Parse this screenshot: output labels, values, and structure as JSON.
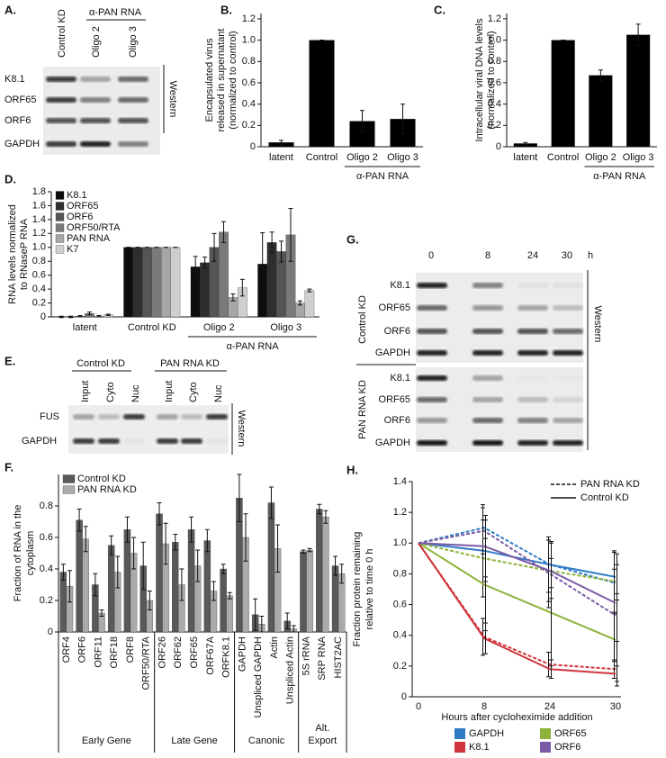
{
  "blots": [
    {
      "panel": "A.",
      "columns": [
        "Control KD",
        "Oligo 2",
        "Oligo 3"
      ],
      "column_group": "α-PAN RNA",
      "rows": [
        "K8.1",
        "ORF65",
        "ORF6",
        "GAPDH"
      ],
      "side_label": "Western"
    },
    {
      "panel": "E.",
      "column_groups": [
        {
          "label": "Control KD",
          "columns": [
            "Input",
            "Cyto",
            "Nuc"
          ]
        },
        {
          "label": "PAN RNA KD",
          "columns": [
            "Input",
            "Cyto",
            "Nuc"
          ]
        }
      ],
      "rows": [
        "FUS",
        "GAPDH"
      ],
      "side_label": "Western"
    },
    {
      "panel": "G.",
      "columns": [
        "0",
        "8",
        "24",
        "30"
      ],
      "unit": "h",
      "row_groups": [
        {
          "label": "Control KD",
          "rows": [
            "K8.1",
            "ORF65",
            "ORF6",
            "GAPDH"
          ]
        },
        {
          "label": "PAN RNA KD",
          "rows": [
            "K8.1",
            "ORF65",
            "ORF6",
            "GAPDH"
          ]
        }
      ],
      "side_label": "Western"
    }
  ],
  "chart_data": [
    {
      "type": "bar",
      "panel": "B.",
      "ylabel": [
        "Encapsulated virus",
        "released in supernatant",
        "(normalized to control)"
      ],
      "groups": [
        {
          "categories": [
            "latent",
            "Control"
          ]
        },
        {
          "label": "α-PAN RNA",
          "categories": [
            "Oligo 2",
            "Oligo 3"
          ]
        }
      ],
      "values": [
        0.04,
        1.0,
        0.24,
        0.26
      ],
      "errors": [
        0.02,
        0,
        0.1,
        0.14
      ],
      "color": "#000000",
      "ylim": [
        0,
        1.25
      ],
      "yticks": [
        0,
        0.2,
        0.4,
        0.6,
        0.8,
        {
          "value": 1,
          "label": "1.0"
        },
        1.2
      ],
      "group_style": "bracket",
      "category_labels": "horizontal"
    },
    {
      "type": "bar",
      "panel": "C.",
      "ylabel": [
        "Intracellular viral DNA levels",
        "(normalized to control)"
      ],
      "groups": [
        {
          "categories": [
            "latent",
            "Control"
          ]
        },
        {
          "label": "α-PAN RNA",
          "categories": [
            "Oligo 2",
            "Oligo 3"
          ]
        }
      ],
      "values": [
        0.03,
        1.0,
        0.67,
        1.05
      ],
      "errors": [
        0.01,
        0,
        0.05,
        0.1
      ],
      "color": "#000000",
      "ylim": [
        0,
        1.25
      ],
      "yticks": [
        0,
        0.2,
        0.4,
        0.6,
        0.8,
        {
          "value": 1,
          "label": "1.0"
        },
        1.2
      ],
      "group_style": "bracket",
      "category_labels": "horizontal"
    },
    {
      "type": "bar",
      "panel": "D.",
      "ylabel": [
        "RNA levels normalized",
        "to RNaseP RNA"
      ],
      "groups": [
        {
          "categories": [
            "latent"
          ]
        },
        {
          "categories": [
            "Control KD"
          ]
        },
        {
          "label": "α-PAN RNA",
          "categories": [
            "Oligo 2",
            "Oligo 3"
          ]
        }
      ],
      "series": [
        {
          "name": "K8.1",
          "color": "#0d0d0d",
          "values": [
            0,
            1.0,
            0.72,
            0.76
          ],
          "errors": [
            0.01,
            0,
            0.15,
            0.45
          ]
        },
        {
          "name": "ORF65",
          "color": "#2e2e2e",
          "values": [
            0,
            1.0,
            0.78,
            1.07
          ],
          "errors": [
            0.01,
            0,
            0.08,
            0.15
          ]
        },
        {
          "name": "ORF6",
          "color": "#555555",
          "values": [
            0.01,
            1.0,
            1.0,
            0.94
          ],
          "errors": [
            0.01,
            0,
            0.2,
            0.15
          ]
        },
        {
          "name": "ORF50/RTA",
          "color": "#7a7a7a",
          "values": [
            0.05,
            1.0,
            1.22,
            1.18
          ],
          "errors": [
            0.02,
            0,
            0.15,
            0.38
          ]
        },
        {
          "name": "PAN RNA",
          "color": "#a6a6a6",
          "values": [
            0.01,
            1.0,
            0.28,
            0.2
          ],
          "errors": [
            0.01,
            0,
            0.05,
            0.03
          ]
        },
        {
          "name": "K7",
          "color": "#cfcfcf",
          "values": [
            0.03,
            1.0,
            0.42,
            0.38
          ],
          "errors": [
            0.01,
            0,
            0.12,
            0.02
          ]
        }
      ],
      "ylim": [
        0,
        1.8
      ],
      "yticks": [
        0,
        0.2,
        0.4,
        0.6,
        0.8,
        {
          "value": 1,
          "label": "1.0"
        },
        1.2,
        1.4,
        1.6,
        1.8
      ],
      "group_style": "bracket",
      "category_labels": "horizontal"
    },
    {
      "type": "bar",
      "panel": "F.",
      "ylabel": [
        "Fraction of RNA in the",
        "cytoplasm"
      ],
      "groups": [
        {
          "label": "Early Gene",
          "categories": [
            "ORF4",
            "ORF6",
            "ORF11",
            "ORF18",
            "ORF8",
            "ORF50/RTA"
          ]
        },
        {
          "label": "Late Gene",
          "categories": [
            "ORF26",
            "ORF62",
            "ORF65",
            "ORF67A",
            "ORFK8.1"
          ]
        },
        {
          "label": "Canonic",
          "categories": [
            "GAPDH",
            "Unspliced GAPDH",
            "Actin",
            "Unspliced Actin"
          ]
        },
        {
          "label": [
            "Alt.",
            "Export"
          ],
          "categories": [
            "5S rRNA",
            "SRP RNA",
            "HIST2AC"
          ]
        }
      ],
      "series": [
        {
          "name": "Control KD",
          "color": "#595959",
          "values": [
            0.38,
            0.71,
            0.3,
            0.55,
            0.65,
            0.42,
            0.75,
            0.57,
            0.65,
            0.58,
            0.4,
            0.85,
            0.11,
            0.82,
            0.07,
            0.51,
            0.78,
            0.42
          ],
          "errors": [
            0.05,
            0.07,
            0.07,
            0.06,
            0.08,
            0.15,
            0.07,
            0.05,
            0.08,
            0.07,
            0.03,
            0.15,
            0.1,
            0.1,
            0.05,
            0.01,
            0.03,
            0.06
          ]
        },
        {
          "name": "PAN RNA KD",
          "color": "#ababab",
          "values": [
            0.29,
            0.59,
            0.12,
            0.38,
            0.5,
            0.2,
            0.56,
            0.3,
            0.42,
            0.26,
            0.23,
            0.6,
            0.05,
            0.53,
            0.02,
            0.52,
            0.73,
            0.37
          ],
          "errors": [
            0.1,
            0.08,
            0.02,
            0.1,
            0.1,
            0.06,
            0.13,
            0.1,
            0.1,
            0.06,
            0.02,
            0.15,
            0.05,
            0.15,
            0.02,
            0.01,
            0.04,
            0.06
          ]
        }
      ],
      "ylim": [
        0,
        1
      ],
      "yticks": [
        0,
        0.2,
        0.4,
        0.6,
        0.8
      ],
      "group_style": "dividers",
      "category_labels": "rotated"
    },
    {
      "type": "line",
      "panel": "H.",
      "ylabel": [
        "Fraction protein remaining",
        "relative to time 0 h"
      ],
      "xlabel": "Hours after cycloheximide addition",
      "categories": [
        "0",
        "8",
        "24",
        "30"
      ],
      "ylim": [
        0,
        1.4
      ],
      "yticks": [
        0,
        0.2,
        0.4,
        0.6,
        0.8,
        {
          "value": 1,
          "label": "1.0"
        },
        1.2,
        1.4
      ],
      "conditions": [
        {
          "name": "PAN RNA KD",
          "dash": "dashed"
        },
        {
          "name": "Control KD",
          "dash": "solid"
        }
      ],
      "proteins": [
        {
          "name": "GAPDH",
          "color": "#2e7bc4",
          "series": [
            {
              "values": [
                1,
                1.1,
                0.86,
                0.74
              ],
              "errors": [
                0,
                0.15,
                0.18,
                0.2
              ]
            },
            {
              "values": [
                1,
                0.95,
                0.86,
                0.78
              ],
              "errors": [
                0,
                0.2,
                0.15,
                0.15
              ]
            }
          ]
        },
        {
          "name": "ORF65",
          "color": "#8db33a",
          "series": [
            {
              "values": [
                1,
                0.9,
                0.82,
                0.75
              ],
              "errors": [
                0,
                0.25,
                0.2,
                0.2
              ]
            },
            {
              "values": [
                1,
                0.73,
                0.55,
                0.37
              ],
              "errors": [
                0,
                0.3,
                0.35,
                0.3
              ]
            }
          ]
        },
        {
          "name": "K8.1",
          "color": "#d0343c",
          "series": [
            {
              "values": [
                1,
                0.39,
                0.21,
                0.18
              ],
              "errors": [
                0,
                0.12,
                0.08,
                0.06
              ]
            },
            {
              "values": [
                1,
                0.38,
                0.18,
                0.15
              ],
              "errors": [
                0,
                0.1,
                0.06,
                0.05
              ]
            }
          ]
        },
        {
          "name": "ORF6",
          "color": "#7a5ba6",
          "series": [
            {
              "values": [
                1,
                1.08,
                0.8,
                0.53
              ],
              "errors": [
                0,
                0.15,
                0.22,
                0.3
              ]
            },
            {
              "values": [
                1,
                0.98,
                0.82,
                0.61
              ],
              "errors": [
                0,
                0.2,
                0.18,
                0.25
              ]
            }
          ]
        }
      ]
    }
  ]
}
